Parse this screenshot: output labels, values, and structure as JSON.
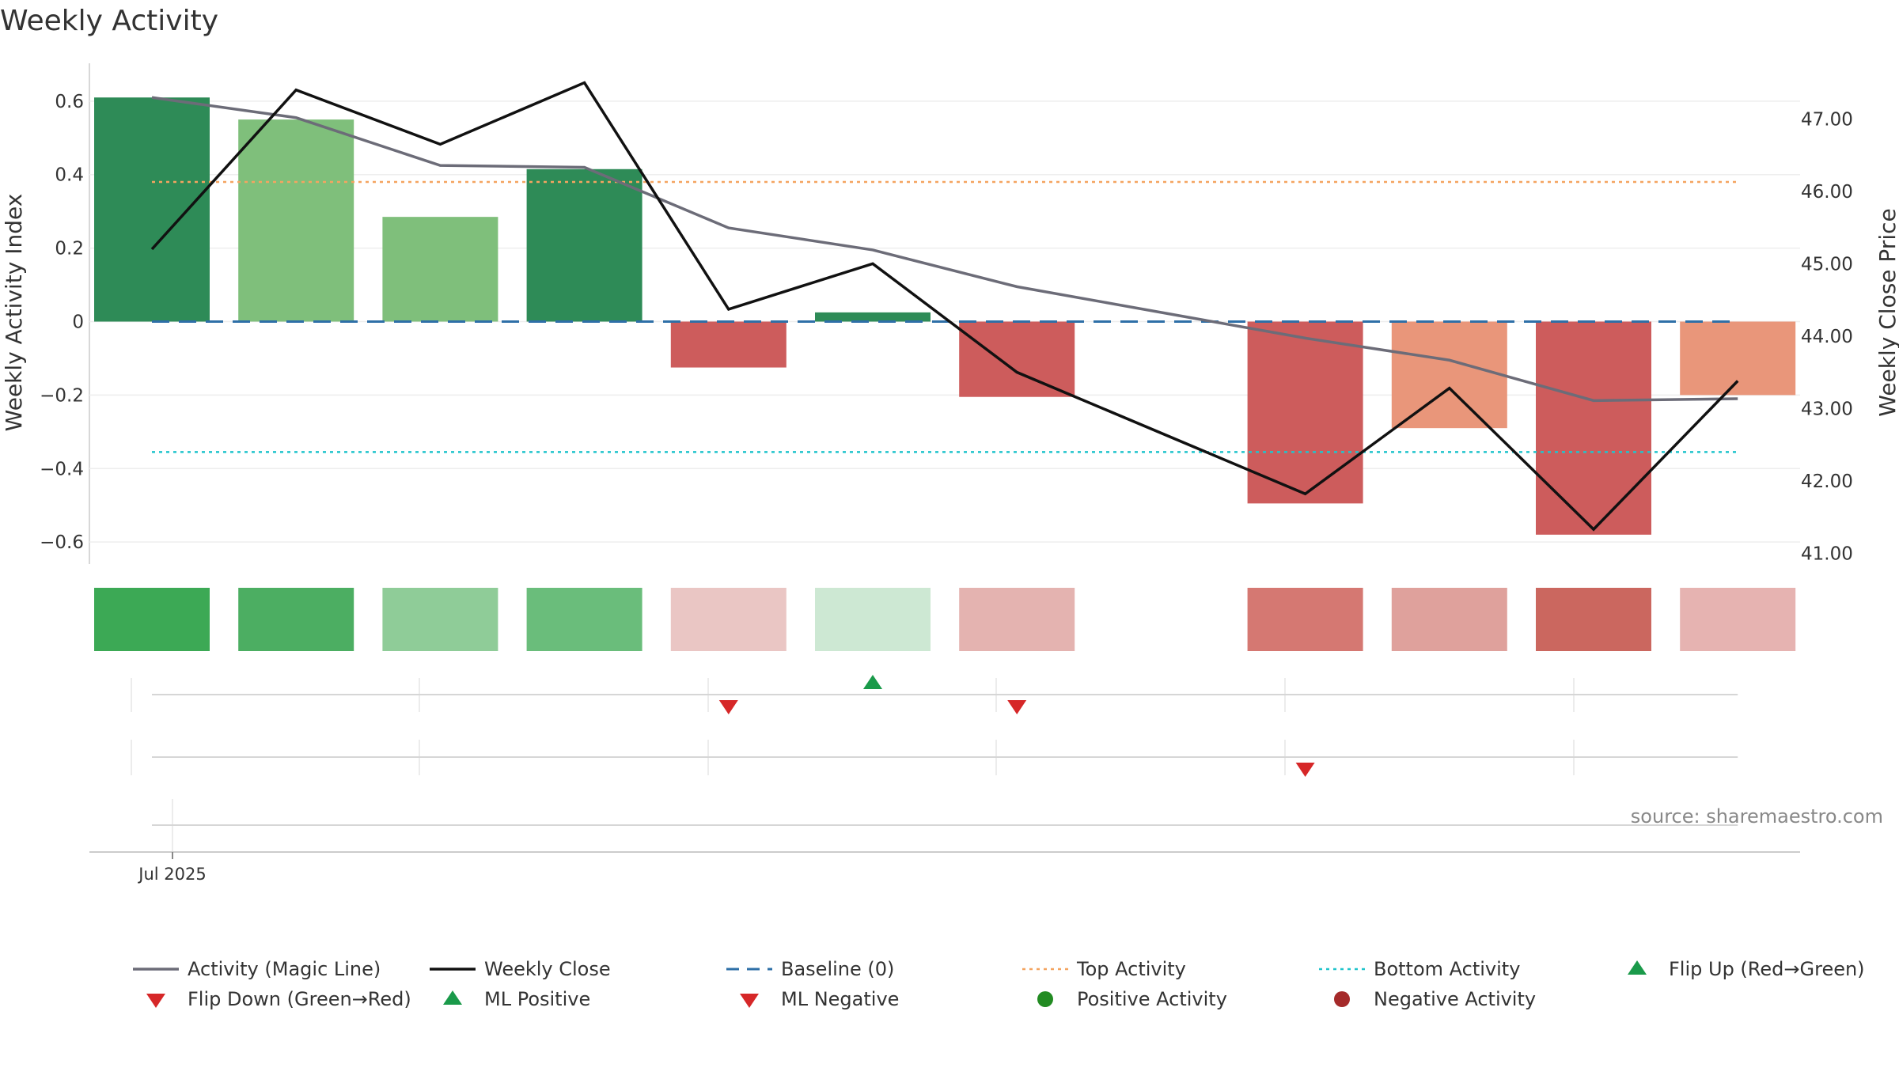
{
  "chart_data": {
    "type": "bar",
    "title": "Weekly Activity",
    "source": "source: sharemaestro.com",
    "left_axis": {
      "label": "Weekly Activity Index",
      "ylim": [
        -0.66,
        0.66
      ],
      "ticks": [
        0.6,
        0.4,
        0.2,
        0,
        -0.2,
        -0.4,
        -0.6
      ],
      "tick_labels": [
        "0.6",
        "0.4",
        "0.2",
        "0",
        "−0.2",
        "−0.4",
        "−0.6"
      ]
    },
    "right_axis": {
      "label": "Weekly Close Price",
      "ylim": [
        40.85,
        47.55
      ],
      "ticks": [
        47,
        46,
        45,
        44,
        43,
        42,
        41
      ],
      "tick_labels": [
        "47.00",
        "46.00",
        "45.00",
        "44.00",
        "43.00",
        "42.00",
        "41.00"
      ]
    },
    "x_tick_labels": [
      "Jul 2025"
    ],
    "weeks": [
      0,
      1,
      2,
      3,
      4,
      5,
      6,
      8,
      9,
      10,
      11
    ],
    "activity": [
      0.61,
      0.55,
      0.285,
      0.415,
      -0.125,
      0.025,
      -0.205,
      -0.495,
      -0.29,
      -0.58,
      -0.2
    ],
    "magic_line": [
      0.61,
      0.555,
      0.425,
      0.42,
      0.255,
      0.195,
      0.095,
      -0.045,
      -0.105,
      -0.215,
      -0.21
    ],
    "weekly_close": [
      45.2,
      47.4,
      46.65,
      47.5,
      44.37,
      45.0,
      43.5,
      41.82,
      43.28,
      41.33,
      43.38
    ],
    "baseline": 0,
    "top_activity": 0.38,
    "bottom_activity": -0.355,
    "bar_colors": [
      "#2e8b57",
      "#7fbf7b",
      "#7fbf7b",
      "#2e8b57",
      "#cd5c5c",
      "#2e8b57",
      "#cd5c5c",
      "#cd5c5c",
      "#e9967a",
      "#cd5c5c",
      "#e9967a"
    ],
    "strip_colors": [
      "#3ca955",
      "#4cae62",
      "#8fcc98",
      "#6abd7b",
      "#eac6c4",
      "#cde8d3",
      "#e4b3b0",
      "#d57872",
      "#dfa19c",
      "#cb675f",
      "#e6b3b1"
    ],
    "ml_positive_weeks": [
      5
    ],
    "ml_negative_weeks": [
      4,
      6
    ],
    "flip_down_weeks": [
      8
    ],
    "colors": {
      "magic_line": "#6c6c78",
      "weekly_close": "#111111",
      "baseline": "#2e6fa7",
      "top_activity": "#f4a460",
      "bottom_activity": "#20c4cc",
      "marker_up": "#1a9a4a",
      "marker_down": "#d62728",
      "positive_dot": "#228b22",
      "negative_dot": "#a52a2a"
    },
    "legend": [
      {
        "label": "Activity (Magic Line)",
        "kind": "line",
        "color": "#6c6c78"
      },
      {
        "label": "Weekly Close",
        "kind": "line",
        "color": "#111111"
      },
      {
        "label": "Baseline (0)",
        "kind": "dash",
        "color": "#2e6fa7"
      },
      {
        "label": "Top Activity",
        "kind": "dot-line",
        "color": "#f4a460"
      },
      {
        "label": "Bottom Activity",
        "kind": "dot-line",
        "color": "#20c4cc"
      },
      {
        "label": "Flip Up (Red→Green)",
        "kind": "tri-up",
        "color": "#1a9a4a"
      },
      {
        "label": "Flip Down (Green→Red)",
        "kind": "tri-down",
        "color": "#d62728"
      },
      {
        "label": "ML Positive",
        "kind": "tri-up",
        "color": "#1a9a4a"
      },
      {
        "label": "ML Negative",
        "kind": "tri-down",
        "color": "#d62728"
      },
      {
        "label": "Positive Activity",
        "kind": "dot",
        "color": "#228b22"
      },
      {
        "label": "Negative Activity",
        "kind": "dot",
        "color": "#a52a2a"
      }
    ]
  }
}
